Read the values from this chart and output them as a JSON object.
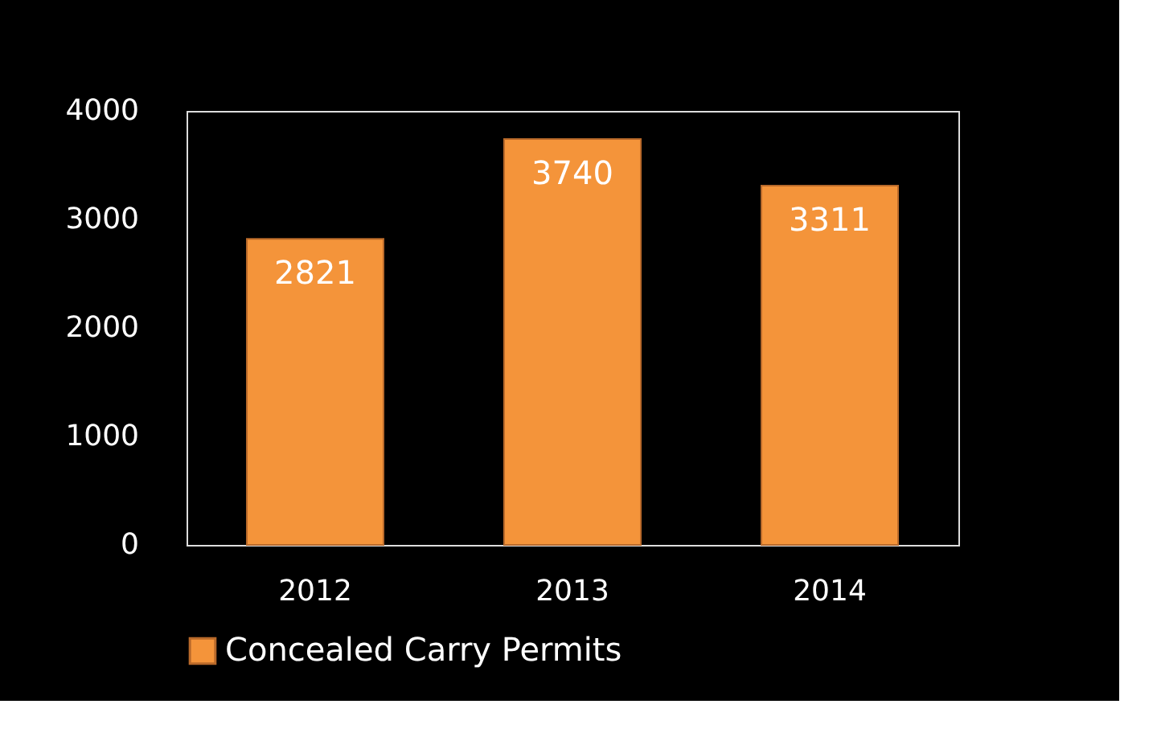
{
  "chart_data": {
    "type": "bar",
    "categories": [
      "2012",
      "2013",
      "2014"
    ],
    "series": [
      {
        "name": "Concealed Carry Permits",
        "color": "#f4943a",
        "values": [
          2821,
          3740,
          3311
        ]
      }
    ],
    "ylim": [
      0,
      4000
    ],
    "yticks": [
      0,
      1000,
      2000,
      3000,
      4000
    ],
    "data_labels": true,
    "legend": "bottom",
    "grid": false
  }
}
